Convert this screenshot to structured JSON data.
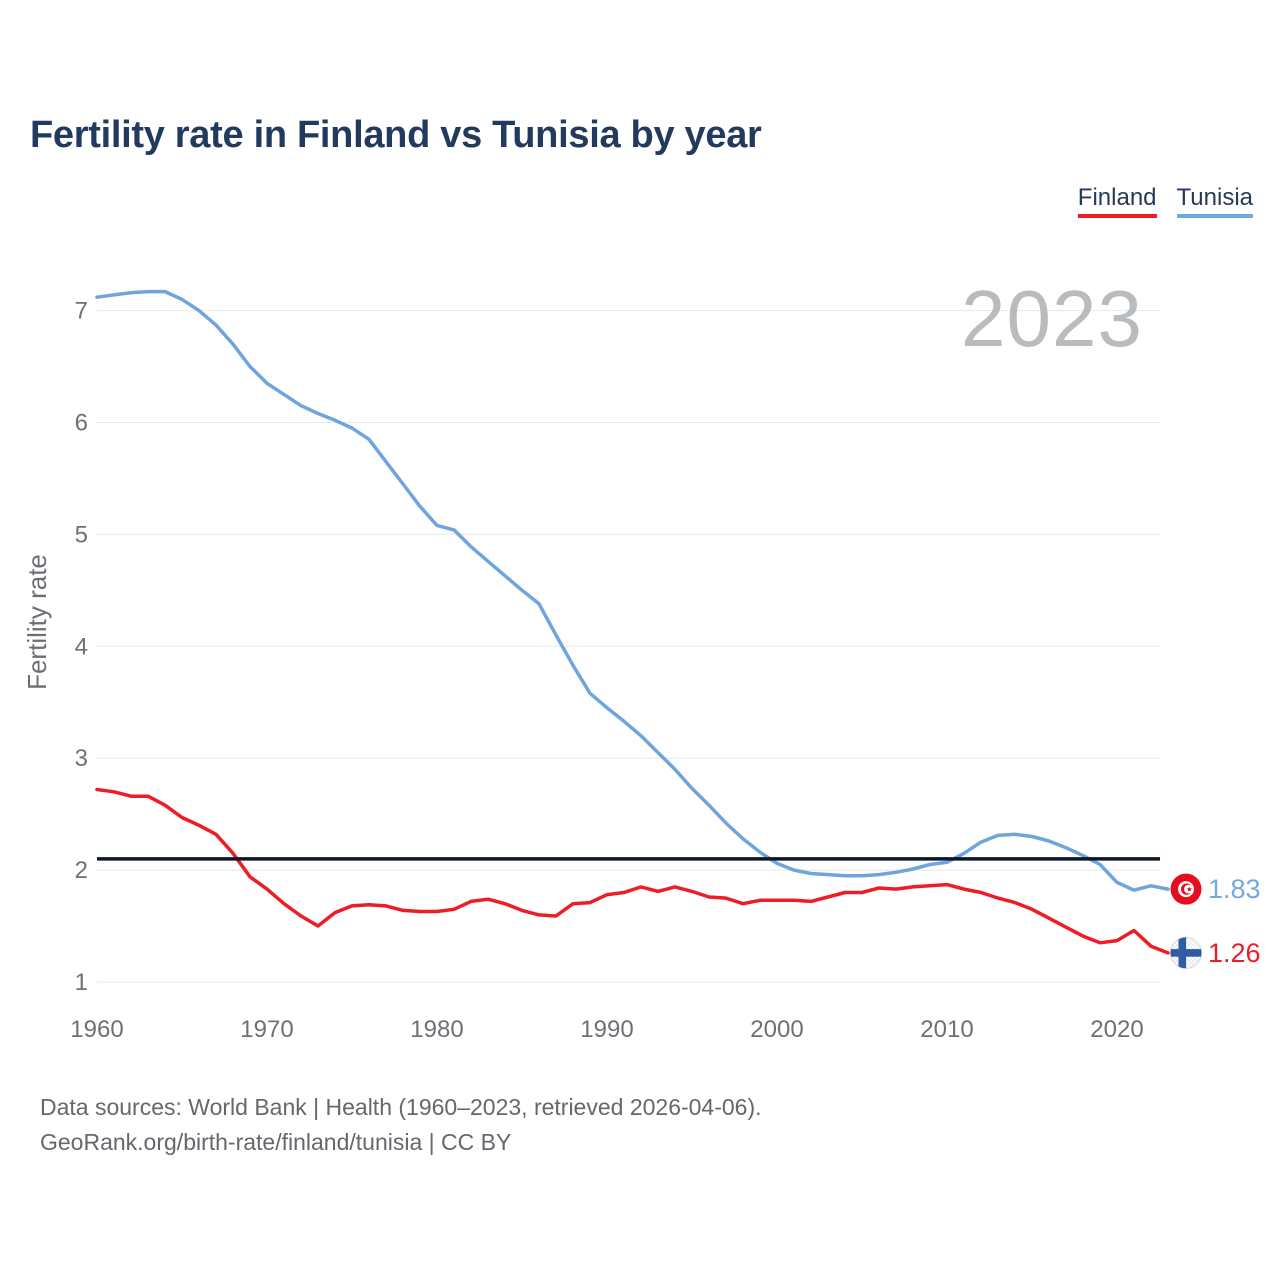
{
  "title": "Fertility rate in Finland vs Tunisia by year",
  "watermark": "2023",
  "legend": [
    {
      "label": "Finland",
      "color": "#EE1C25"
    },
    {
      "label": "Tunisia",
      "color": "#6FA9DE"
    }
  ],
  "chart_data": {
    "type": "line",
    "title": "Fertility rate in Finland vs Tunisia by year",
    "xlabel": "",
    "ylabel": "Fertility rate",
    "x": [
      1960,
      1961,
      1962,
      1963,
      1964,
      1965,
      1966,
      1967,
      1968,
      1969,
      1970,
      1971,
      1972,
      1973,
      1974,
      1975,
      1976,
      1977,
      1978,
      1979,
      1980,
      1981,
      1982,
      1983,
      1984,
      1985,
      1986,
      1987,
      1988,
      1989,
      1990,
      1991,
      1992,
      1993,
      1994,
      1995,
      1996,
      1997,
      1998,
      1999,
      2000,
      2001,
      2002,
      2003,
      2004,
      2005,
      2006,
      2007,
      2008,
      2009,
      2010,
      2011,
      2012,
      2013,
      2014,
      2015,
      2016,
      2017,
      2018,
      2019,
      2020,
      2021,
      2022,
      2023
    ],
    "series": [
      {
        "name": "Finland",
        "color": "#EE1C25",
        "values": [
          2.72,
          2.7,
          2.66,
          2.66,
          2.58,
          2.47,
          2.4,
          2.32,
          2.15,
          1.94,
          1.83,
          1.7,
          1.59,
          1.5,
          1.62,
          1.68,
          1.69,
          1.68,
          1.64,
          1.63,
          1.63,
          1.65,
          1.72,
          1.74,
          1.7,
          1.64,
          1.6,
          1.59,
          1.7,
          1.71,
          1.78,
          1.8,
          1.85,
          1.81,
          1.85,
          1.81,
          1.76,
          1.75,
          1.7,
          1.73,
          1.73,
          1.73,
          1.72,
          1.76,
          1.8,
          1.8,
          1.84,
          1.83,
          1.85,
          1.86,
          1.87,
          1.83,
          1.8,
          1.75,
          1.71,
          1.65,
          1.57,
          1.49,
          1.41,
          1.35,
          1.37,
          1.46,
          1.32,
          1.26
        ]
      },
      {
        "name": "Tunisia",
        "color": "#6FA5DC",
        "values": [
          7.12,
          7.14,
          7.16,
          7.17,
          7.17,
          7.1,
          7.0,
          6.87,
          6.7,
          6.5,
          6.35,
          6.25,
          6.15,
          6.08,
          6.02,
          5.95,
          5.85,
          5.65,
          5.45,
          5.25,
          5.08,
          5.04,
          4.89,
          4.76,
          4.63,
          4.5,
          4.38,
          4.1,
          3.83,
          3.58,
          3.45,
          3.33,
          3.2,
          3.05,
          2.9,
          2.73,
          2.58,
          2.42,
          2.28,
          2.16,
          2.06,
          2.0,
          1.97,
          1.96,
          1.95,
          1.95,
          1.96,
          1.98,
          2.01,
          2.05,
          2.07,
          2.15,
          2.25,
          2.31,
          2.32,
          2.3,
          2.26,
          2.2,
          2.13,
          2.05,
          1.89,
          1.82,
          1.86,
          1.83
        ]
      }
    ],
    "xticks": [
      "1960",
      "1970",
      "1980",
      "1990",
      "2000",
      "2010",
      "2020"
    ],
    "yticks": [
      "1",
      "2",
      "3",
      "4",
      "5",
      "6",
      "7"
    ],
    "xlim": [
      1960,
      2023
    ],
    "ylim": [
      1,
      7.4
    ],
    "grid": true,
    "legend_position": "top-right",
    "reference_line": {
      "value": 2.1,
      "color": "#0E1726"
    },
    "end_labels": [
      {
        "series": "Tunisia",
        "value": "1.83",
        "text_color": "#74A9DE",
        "flag": "tunisia-flag-icon"
      },
      {
        "series": "Finland",
        "value": "1.26",
        "text_color": "#EE1C25",
        "flag": "finland-flag-icon"
      }
    ],
    "flags": {
      "tunisia": {
        "bg": "#E70C1E",
        "detail": "#FFFFFF"
      },
      "finland": {
        "bg": "#F4F5F6",
        "cross": "#2F5DA4",
        "ring": "#D8DADC"
      }
    }
  },
  "axis": {
    "tick_color": "#6D7176",
    "grid_color": "#E7E8EA",
    "axis_label_color": "#6B6F74",
    "watermark_color": "#B9BCBF"
  },
  "footer": {
    "line1": "Data sources: World Bank | Health (1960–2023, retrieved 2026-04-06).",
    "line2": "GeoRank.org/birth-rate/finland/tunisia | CC BY"
  }
}
